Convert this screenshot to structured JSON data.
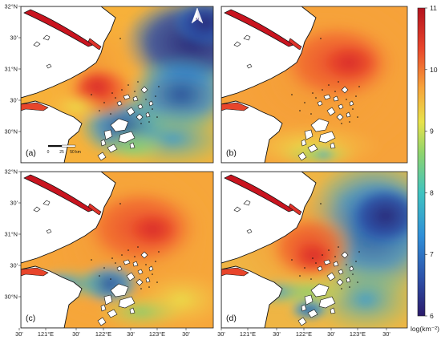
{
  "figure": {
    "panels": [
      {
        "label": "(a)",
        "pattern": "a"
      },
      {
        "label": "(b)",
        "pattern": "b"
      },
      {
        "label": "(c)",
        "pattern": "c"
      },
      {
        "label": "(d)",
        "pattern": "d"
      }
    ],
    "lat_ticks": [
      "32°N",
      "30'",
      "31°N",
      "30'",
      "30°N"
    ],
    "lon_ticks": [
      "30'",
      "121°E",
      "30'",
      "122°E",
      "30'",
      "123°E",
      "30'"
    ],
    "north_arrow_label": "N",
    "scalebar": {
      "labels": [
        "0",
        "25",
        "50 km"
      ]
    },
    "colorbar": {
      "ticks": [
        "11",
        "10",
        "9",
        "8",
        "7",
        "6"
      ],
      "min": 6,
      "max": 11,
      "unit": "log(km⁻²)",
      "colors": [
        "#2b1a6a",
        "#2d50a8",
        "#2f8fd8",
        "#3fc3c0",
        "#8fd46c",
        "#e8e24a",
        "#f7a43a",
        "#e8452b",
        "#b3121e"
      ]
    }
  }
}
